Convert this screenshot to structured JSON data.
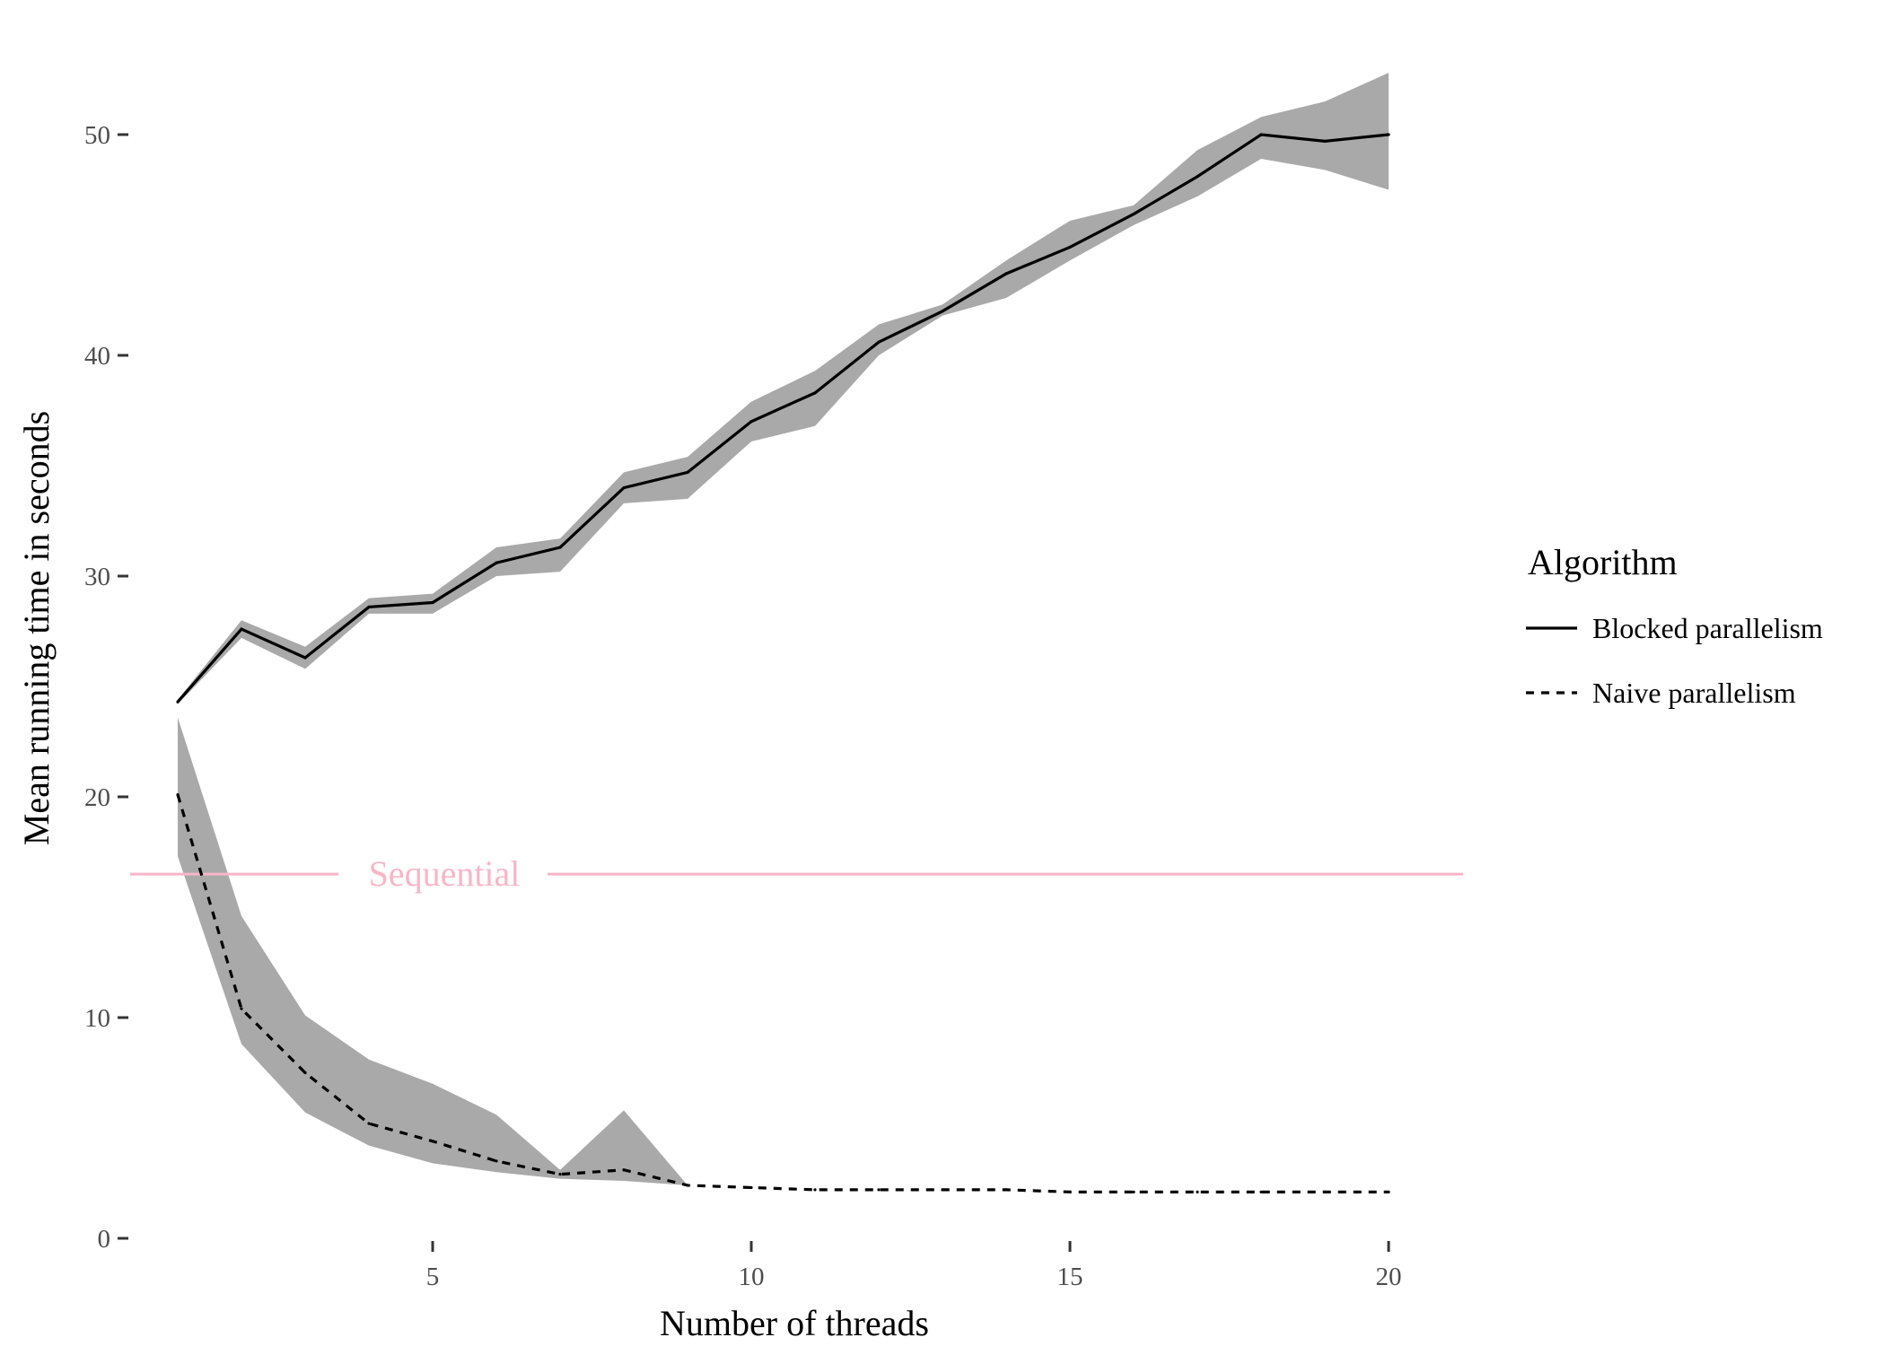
{
  "chart_data": {
    "type": "line",
    "title": "",
    "xlabel": "Number of threads",
    "ylabel": "Mean running time in seconds",
    "xlim": [
      0.0,
      21.0
    ],
    "ylim": [
      0,
      54
    ],
    "x_ticks": [
      5,
      10,
      15,
      20
    ],
    "y_ticks": [
      0,
      10,
      20,
      30,
      40,
      50
    ],
    "grid": false,
    "legend": {
      "title": "Algorithm",
      "position": "right",
      "entries": [
        "Blocked parallelism",
        "Naive parallelism"
      ]
    },
    "reference_line": {
      "label": "Sequential",
      "y": 16.5,
      "color": "#f7b6c8"
    },
    "ribbon_color": "#a9a9a9",
    "line_color": "#000000",
    "series": [
      {
        "name": "Blocked parallelism",
        "linestyle": "solid",
        "x": [
          1,
          2,
          3,
          4,
          5,
          6,
          7,
          8,
          9,
          10,
          11,
          12,
          13,
          14,
          15,
          16,
          17,
          18,
          19,
          20
        ],
        "y": [
          24.3,
          27.6,
          26.3,
          28.6,
          28.8,
          30.6,
          31.3,
          34.0,
          34.7,
          37.0,
          38.3,
          40.6,
          42.0,
          43.7,
          44.9,
          46.4,
          48.1,
          50.0,
          49.7,
          50.0
        ],
        "lower": [
          24.2,
          27.2,
          25.8,
          28.3,
          28.3,
          30.0,
          30.2,
          33.3,
          33.5,
          36.1,
          36.8,
          40.0,
          41.8,
          42.6,
          44.3,
          45.9,
          47.2,
          48.9,
          48.4,
          47.5
        ],
        "upper": [
          24.4,
          28.0,
          26.8,
          29.0,
          29.2,
          31.3,
          31.7,
          34.7,
          35.4,
          37.9,
          39.3,
          41.4,
          42.3,
          44.3,
          46.1,
          46.8,
          49.3,
          50.8,
          51.5,
          52.8
        ]
      },
      {
        "name": "Naive parallelism",
        "linestyle": "dashed",
        "x": [
          1,
          2,
          3,
          4,
          5,
          6,
          7,
          8,
          9,
          10,
          11,
          12,
          13,
          14,
          15,
          16,
          17,
          18,
          19,
          20
        ],
        "y": [
          20.1,
          10.4,
          7.5,
          5.2,
          4.4,
          3.5,
          2.9,
          3.1,
          2.4,
          2.3,
          2.2,
          2.2,
          2.2,
          2.2,
          2.1,
          2.1,
          2.1,
          2.1,
          2.1,
          2.1
        ],
        "lower": [
          17.3,
          8.8,
          5.7,
          4.2,
          3.4,
          3.0,
          2.7,
          2.6,
          2.4,
          2.3,
          2.2,
          2.2,
          2.2,
          2.2,
          2.1,
          2.1,
          2.1,
          2.1,
          2.1,
          2.1
        ],
        "upper": [
          23.6,
          14.6,
          10.1,
          8.1,
          7.0,
          5.6,
          3.1,
          5.8,
          2.4,
          2.3,
          2.2,
          2.2,
          2.2,
          2.2,
          2.1,
          2.1,
          2.1,
          2.1,
          2.1,
          2.1
        ]
      }
    ]
  }
}
